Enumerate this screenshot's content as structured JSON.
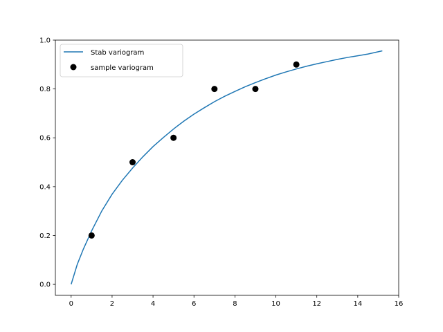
{
  "chart_data": {
    "type": "line+scatter",
    "xlim": [
      -0.77,
      16.0
    ],
    "ylim": [
      -0.045,
      1.0
    ],
    "x_ticks": [
      0,
      2,
      4,
      6,
      8,
      10,
      12,
      14,
      16
    ],
    "y_ticks": [
      0.0,
      0.2,
      0.4,
      0.6,
      0.8,
      1.0
    ],
    "x_tick_labels": [
      "0",
      "2",
      "4",
      "6",
      "8",
      "10",
      "12",
      "14",
      "16"
    ],
    "y_tick_labels": [
      "0.0",
      "0.2",
      "0.4",
      "0.6",
      "0.8",
      "1.0"
    ],
    "grid": false,
    "legend_position": "top-left",
    "series": [
      {
        "name": "Stab variogram",
        "kind": "line",
        "color": "#1f77b4",
        "x": [
          0,
          0.3,
          0.6,
          1,
          1.5,
          2,
          2.5,
          3,
          3.5,
          4,
          4.5,
          5,
          5.5,
          6,
          6.5,
          7,
          7.5,
          8,
          8.5,
          9,
          9.5,
          10,
          10.5,
          11,
          11.5,
          12,
          12.5,
          13,
          13.5,
          14,
          14.5,
          15.2
        ],
        "y": [
          0.0,
          0.082,
          0.145,
          0.219,
          0.301,
          0.369,
          0.426,
          0.476,
          0.522,
          0.564,
          0.601,
          0.636,
          0.668,
          0.697,
          0.723,
          0.748,
          0.77,
          0.79,
          0.809,
          0.826,
          0.842,
          0.857,
          0.87,
          0.882,
          0.893,
          0.903,
          0.912,
          0.921,
          0.929,
          0.936,
          0.943,
          0.956
        ]
      },
      {
        "name": "sample variogram",
        "kind": "scatter",
        "color": "#000000",
        "x": [
          1,
          3,
          5,
          7,
          9,
          11
        ],
        "y": [
          0.2,
          0.5,
          0.6,
          0.8,
          0.8,
          0.9
        ]
      }
    ]
  }
}
